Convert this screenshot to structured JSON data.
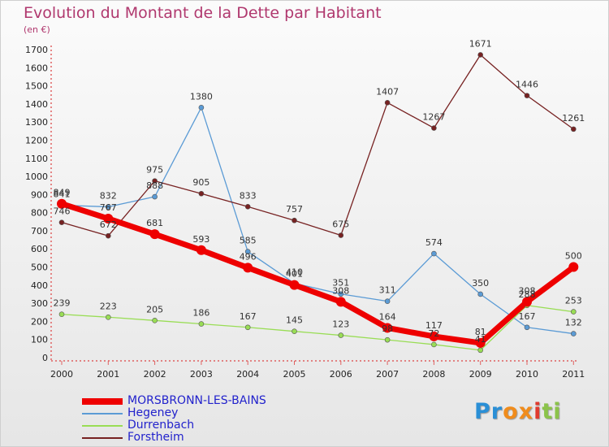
{
  "chart_data": {
    "type": "line",
    "title": "Evolution du Montant de la Dette par Habitant",
    "unit_label": "(en €)",
    "x": [
      "2000",
      "2001",
      "2002",
      "2003",
      "2004",
      "2005",
      "2006",
      "2007",
      "2008",
      "2009",
      "2010",
      "2011"
    ],
    "ylim": [
      0,
      1700
    ],
    "yticks": [
      0,
      100,
      200,
      300,
      400,
      500,
      600,
      700,
      800,
      900,
      1000,
      1100,
      1200,
      1300,
      1400,
      1500,
      1600,
      1700
    ],
    "grid": false,
    "legend_position": "bottom-left",
    "series": [
      {
        "name": "MORSBRONN-LES-BAINS",
        "color": "#ee0000",
        "width": 7,
        "values": [
          849,
          767,
          681,
          593,
          496,
          401,
          308,
          164,
          117,
          81,
          308,
          500
        ]
      },
      {
        "name": "Hegeney",
        "color": "#5b9bd5",
        "width": 1.3,
        "values": [
          841,
          832,
          888,
          1380,
          585,
          410,
          351,
          311,
          574,
          350,
          167,
          132
        ]
      },
      {
        "name": "Durrenbach",
        "color": "#99dd55",
        "width": 1.3,
        "values": [
          239,
          223,
          205,
          186,
          167,
          145,
          123,
          98,
          72,
          41,
          288,
          253
        ]
      },
      {
        "name": "Forstheim",
        "color": "#772222",
        "width": 1.3,
        "values": [
          746,
          672,
          975,
          905,
          833,
          757,
          675,
          1407,
          1267,
          1671,
          1446,
          1261
        ]
      }
    ]
  },
  "logo": {
    "letters": [
      "P",
      "r",
      "o",
      "x",
      "i",
      "t",
      "i"
    ],
    "colors": [
      "#2a8fd6",
      "#2a8fd6",
      "#f08c1c",
      "#f08c1c",
      "#e03a2e",
      "#8bc34a",
      "#8bc34a"
    ]
  }
}
